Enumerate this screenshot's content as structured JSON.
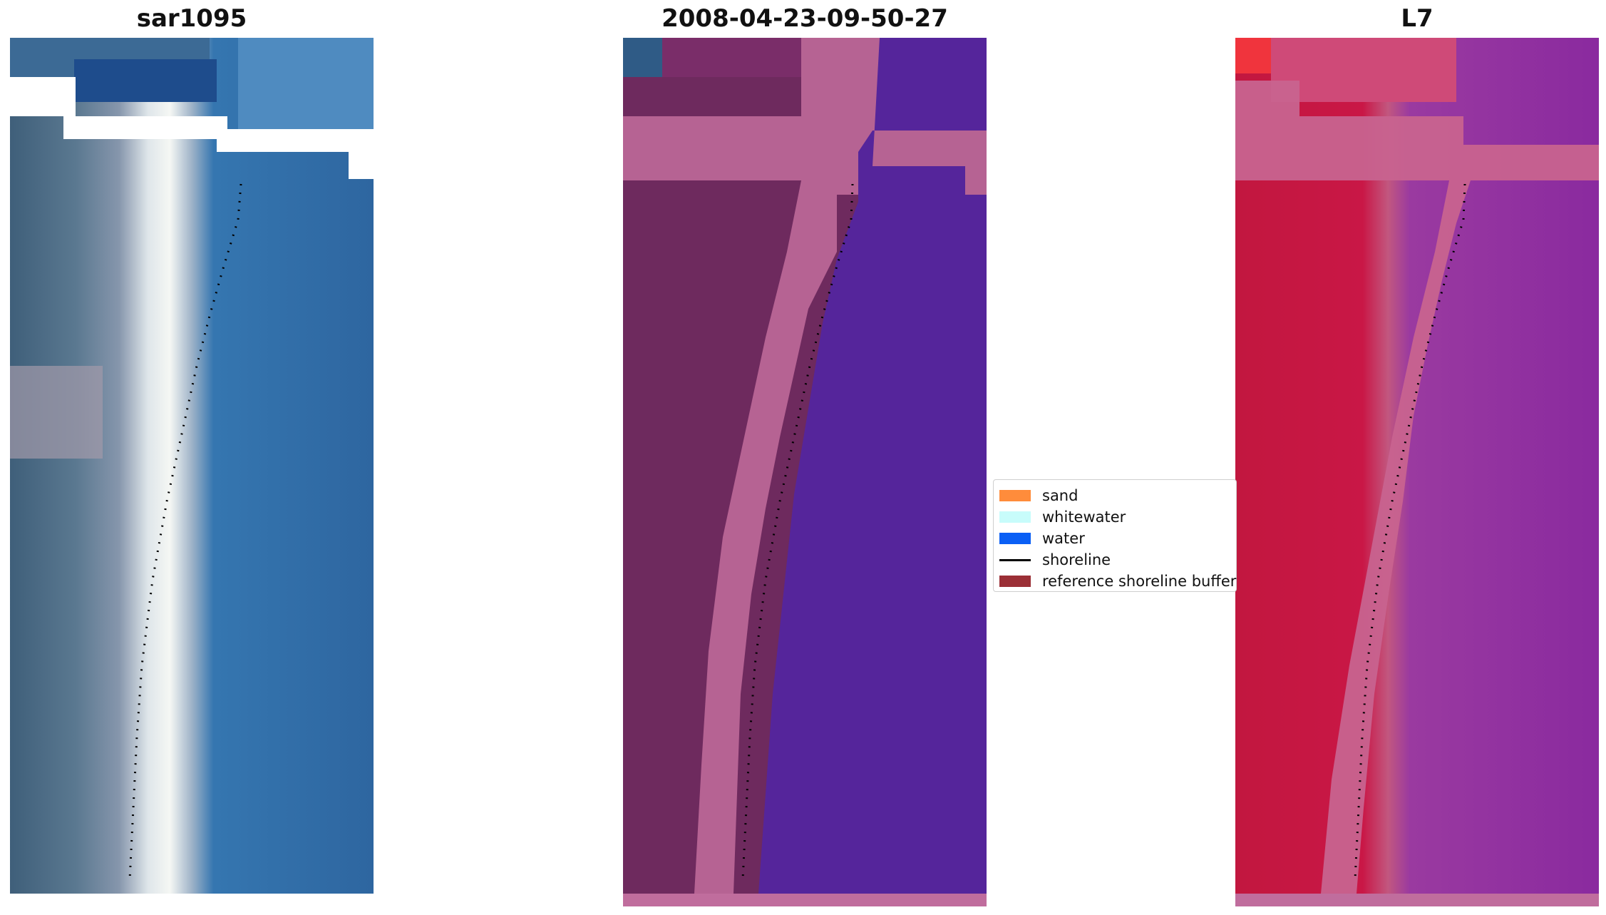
{
  "panels": [
    {
      "title": "sar1095",
      "style": "rgb"
    },
    {
      "title": "2008-04-23-09-50-27",
      "style": "classified"
    },
    {
      "title": "L7",
      "style": "index"
    }
  ],
  "legend": {
    "items": [
      {
        "label": "sand",
        "kind": "swatch",
        "color": "#ff8c3b"
      },
      {
        "label": "whitewater",
        "kind": "swatch",
        "color": "#c8fcfb"
      },
      {
        "label": "water",
        "kind": "swatch",
        "color": "#0a5ff5"
      },
      {
        "label": "shoreline",
        "kind": "line",
        "color": "#000000"
      },
      {
        "label": "reference shoreline buffer",
        "kind": "swatch",
        "color": "#9b2f36"
      }
    ]
  },
  "colors": {
    "rgb_land": "#4d6d87",
    "rgb_water": "#2f6aa6",
    "rgb_surf": "#e3ecea",
    "class_land": "#6e2a5e",
    "class_buffer": "#b66393",
    "class_water": "#55259b",
    "index_land": "#c4173e",
    "index_water": "#8a2aa0",
    "index_buffer": "#c8638f"
  }
}
